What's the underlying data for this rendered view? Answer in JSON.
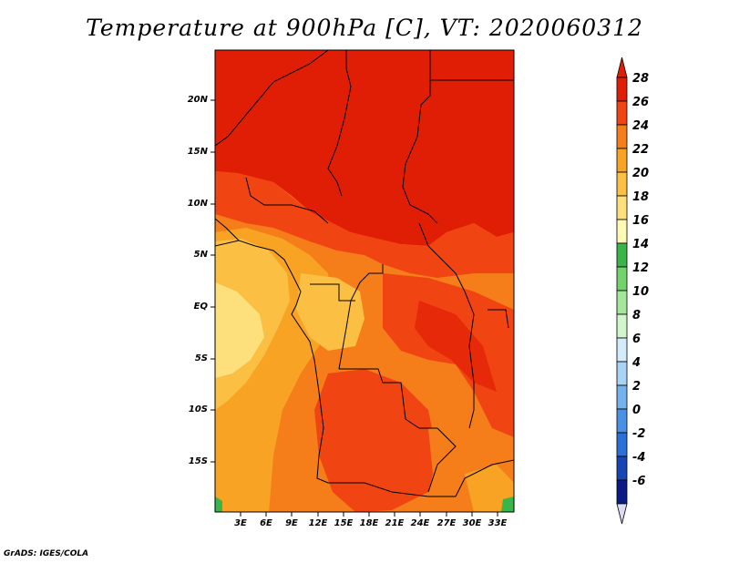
{
  "title": "Temperature at 900hPa [C], VT: 2020060312",
  "credit": "GrADS: IGES/COLA",
  "lat_labels": [
    "20N",
    "15N",
    "10N",
    "5N",
    "EQ",
    "5S",
    "10S",
    "15S"
  ],
  "lon_labels": [
    "3E",
    "6E",
    "9E",
    "12E",
    "15E",
    "18E",
    "21E",
    "24E",
    "27E",
    "30E",
    "33E"
  ],
  "colorbar": {
    "labels": [
      "28",
      "26",
      "24",
      "22",
      "20",
      "18",
      "16",
      "14",
      "12",
      "10",
      "8",
      "6",
      "4",
      "2",
      "0",
      "-2",
      "-4",
      "-6"
    ],
    "colors": [
      "#e01e06",
      "#f04512",
      "#f57d1a",
      "#f8a323",
      "#fbc043",
      "#fde07c",
      "#fef9b4",
      "#39b54a",
      "#73d26a",
      "#a4e69c",
      "#d3f5cc",
      "#d4ebfb",
      "#a8d3f5",
      "#74b2ee",
      "#4a91e6",
      "#2b6fd8",
      "#1546b4",
      "#0a1a86"
    ],
    "top_cap": "#e01e06",
    "bottom_cap": "#dcdcf0"
  }
}
